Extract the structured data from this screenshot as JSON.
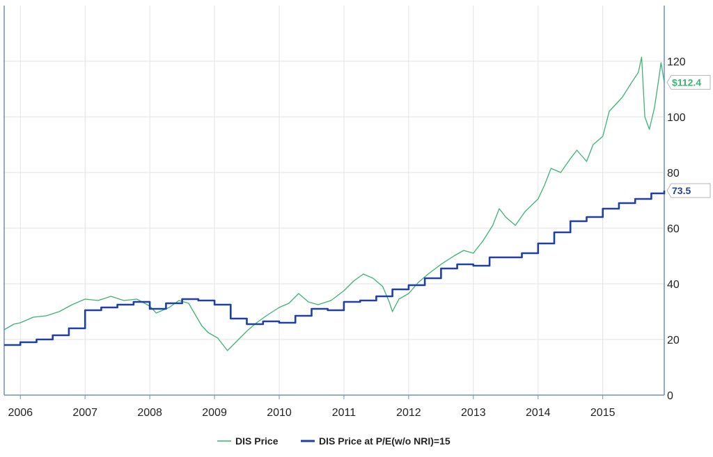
{
  "chart_data": {
    "type": "line",
    "x_range": [
      2005.75,
      2015.95
    ],
    "ylim": [
      0,
      140
    ],
    "x_ticks": [
      {
        "value": 2006.0,
        "label": "2006"
      },
      {
        "value": 2007.0,
        "label": "2007"
      },
      {
        "value": 2008.0,
        "label": "2008"
      },
      {
        "value": 2009.0,
        "label": "2009"
      },
      {
        "value": 2010.0,
        "label": "2010"
      },
      {
        "value": 2011.0,
        "label": "2011"
      },
      {
        "value": 2012.0,
        "label": "2012"
      },
      {
        "value": 2013.0,
        "label": "2013"
      },
      {
        "value": 2014.0,
        "label": "2014"
      },
      {
        "value": 2015.0,
        "label": "2015"
      }
    ],
    "y_ticks": [
      {
        "value": 0,
        "label": "0"
      },
      {
        "value": 20,
        "label": "20"
      },
      {
        "value": 40,
        "label": "40"
      },
      {
        "value": 60,
        "label": "60"
      },
      {
        "value": 80,
        "label": "80"
      },
      {
        "value": 100,
        "label": "100"
      },
      {
        "value": 120,
        "label": "120"
      }
    ],
    "grid": true,
    "y_axis_side": "right",
    "legend_position": "bottom-center",
    "series": [
      {
        "name": "DIS Price",
        "color": "#3cb371",
        "style": "line",
        "last_value_label": "$112.4",
        "points": [
          [
            2005.75,
            23.5
          ],
          [
            2005.9,
            25.5
          ],
          [
            2006.0,
            26.0
          ],
          [
            2006.2,
            28.0
          ],
          [
            2006.4,
            28.5
          ],
          [
            2006.6,
            30.0
          ],
          [
            2006.8,
            32.5
          ],
          [
            2007.0,
            34.5
          ],
          [
            2007.2,
            34.0
          ],
          [
            2007.4,
            35.5
          ],
          [
            2007.6,
            34.0
          ],
          [
            2007.8,
            34.5
          ],
          [
            2008.0,
            32.0
          ],
          [
            2008.1,
            29.5
          ],
          [
            2008.3,
            31.5
          ],
          [
            2008.45,
            34.0
          ],
          [
            2008.6,
            33.0
          ],
          [
            2008.7,
            29.0
          ],
          [
            2008.8,
            25.0
          ],
          [
            2008.9,
            22.5
          ],
          [
            2009.05,
            20.5
          ],
          [
            2009.15,
            17.5
          ],
          [
            2009.2,
            16.0
          ],
          [
            2009.35,
            19.5
          ],
          [
            2009.5,
            23.0
          ],
          [
            2009.65,
            26.0
          ],
          [
            2009.8,
            28.5
          ],
          [
            2010.0,
            31.5
          ],
          [
            2010.15,
            33.0
          ],
          [
            2010.3,
            36.5
          ],
          [
            2010.45,
            33.5
          ],
          [
            2010.6,
            32.5
          ],
          [
            2010.8,
            34.0
          ],
          [
            2011.0,
            37.5
          ],
          [
            2011.15,
            41.0
          ],
          [
            2011.3,
            43.5
          ],
          [
            2011.45,
            42.0
          ],
          [
            2011.6,
            39.0
          ],
          [
            2011.7,
            33.5
          ],
          [
            2011.75,
            30.0
          ],
          [
            2011.85,
            34.5
          ],
          [
            2012.0,
            36.5
          ],
          [
            2012.15,
            40.5
          ],
          [
            2012.3,
            43.5
          ],
          [
            2012.5,
            47.0
          ],
          [
            2012.7,
            50.0
          ],
          [
            2012.85,
            52.0
          ],
          [
            2013.0,
            51.0
          ],
          [
            2013.15,
            55.5
          ],
          [
            2013.3,
            61.0
          ],
          [
            2013.4,
            67.0
          ],
          [
            2013.5,
            64.0
          ],
          [
            2013.65,
            61.0
          ],
          [
            2013.8,
            66.0
          ],
          [
            2014.0,
            70.5
          ],
          [
            2014.1,
            75.5
          ],
          [
            2014.2,
            81.5
          ],
          [
            2014.35,
            80.0
          ],
          [
            2014.5,
            85.0
          ],
          [
            2014.6,
            88.0
          ],
          [
            2014.75,
            84.0
          ],
          [
            2014.85,
            90.0
          ],
          [
            2015.0,
            93.0
          ],
          [
            2015.1,
            102.0
          ],
          [
            2015.3,
            107.0
          ],
          [
            2015.45,
            112.5
          ],
          [
            2015.55,
            116.0
          ],
          [
            2015.6,
            121.5
          ],
          [
            2015.65,
            100.0
          ],
          [
            2015.72,
            95.5
          ],
          [
            2015.8,
            103.5
          ],
          [
            2015.87,
            114.5
          ],
          [
            2015.9,
            119.5
          ],
          [
            2015.95,
            112.4
          ]
        ]
      },
      {
        "name": "DIS Price at P/E(w/o NRI)=15",
        "color": "#1f3fa3",
        "style": "step",
        "last_value_label": "73.5",
        "points": [
          [
            2005.75,
            18.0
          ],
          [
            2006.0,
            19.0
          ],
          [
            2006.25,
            20.0
          ],
          [
            2006.5,
            21.5
          ],
          [
            2006.75,
            24.0
          ],
          [
            2007.0,
            30.5
          ],
          [
            2007.25,
            31.5
          ],
          [
            2007.5,
            32.5
          ],
          [
            2007.75,
            33.5
          ],
          [
            2008.0,
            31.0
          ],
          [
            2008.25,
            33.0
          ],
          [
            2008.5,
            34.5
          ],
          [
            2008.75,
            34.0
          ],
          [
            2009.0,
            32.5
          ],
          [
            2009.25,
            27.5
          ],
          [
            2009.5,
            25.5
          ],
          [
            2009.75,
            26.5
          ],
          [
            2010.0,
            26.0
          ],
          [
            2010.25,
            28.5
          ],
          [
            2010.5,
            31.0
          ],
          [
            2010.75,
            30.5
          ],
          [
            2011.0,
            33.5
          ],
          [
            2011.25,
            34.0
          ],
          [
            2011.5,
            35.5
          ],
          [
            2011.75,
            38.0
          ],
          [
            2012.0,
            39.5
          ],
          [
            2012.25,
            42.0
          ],
          [
            2012.5,
            45.5
          ],
          [
            2012.75,
            47.0
          ],
          [
            2013.0,
            46.5
          ],
          [
            2013.25,
            49.5
          ],
          [
            2013.5,
            49.5
          ],
          [
            2013.75,
            51.0
          ],
          [
            2014.0,
            54.5
          ],
          [
            2014.25,
            58.5
          ],
          [
            2014.5,
            62.5
          ],
          [
            2014.75,
            64.0
          ],
          [
            2015.0,
            67.0
          ],
          [
            2015.25,
            69.0
          ],
          [
            2015.5,
            70.5
          ],
          [
            2015.75,
            72.5
          ],
          [
            2015.95,
            73.5
          ]
        ]
      }
    ]
  }
}
